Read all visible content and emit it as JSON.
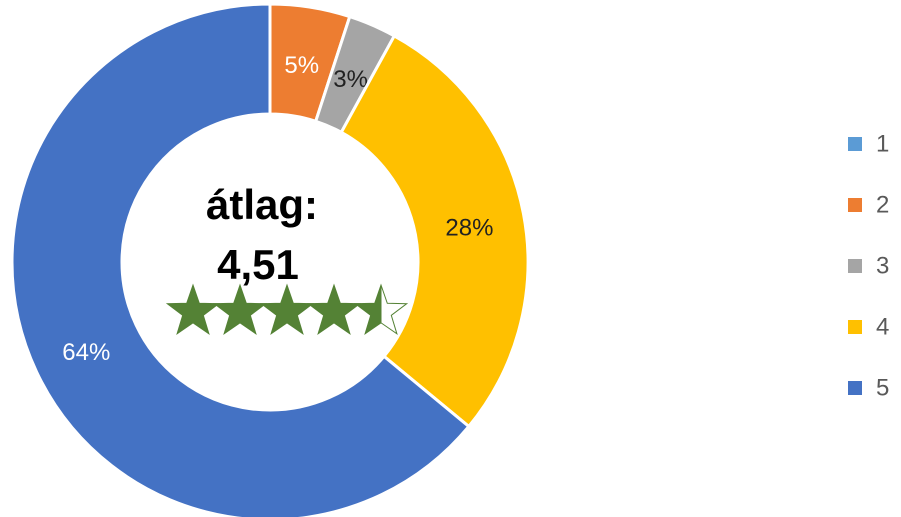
{
  "chart_data": {
    "type": "donut",
    "categories": [
      "1",
      "2",
      "3",
      "4",
      "5"
    ],
    "values": [
      0,
      5,
      3,
      28,
      64
    ],
    "value_labels": [
      null,
      "5%",
      "3%",
      "28%",
      "64%"
    ],
    "colors": [
      "#5b9bd5",
      "#ed7d31",
      "#a5a5a5",
      "#ffc000",
      "#4472c4"
    ],
    "center_title": "átlag:",
    "average": 4.51,
    "average_label": "4,51",
    "legend": "right"
  }
}
